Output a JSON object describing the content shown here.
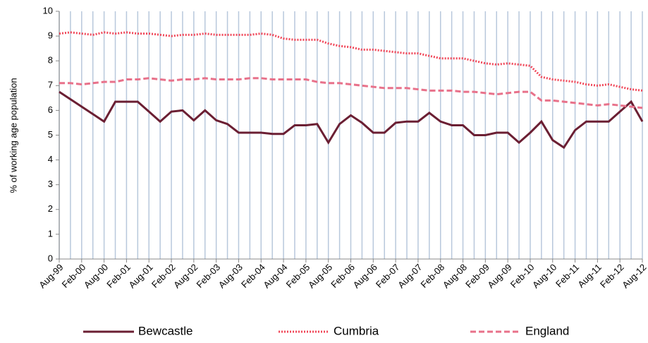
{
  "chart_data": {
    "type": "line",
    "y_label": "% of working age population",
    "categories": [
      "Aug-99",
      null,
      "Feb-00",
      null,
      "Aug-00",
      null,
      "Feb-01",
      null,
      "Aug-01",
      null,
      "Feb-02",
      null,
      "Aug-02",
      null,
      "Feb-03",
      null,
      "Aug-03",
      null,
      "Feb-04",
      null,
      "Aug-04",
      null,
      "Feb-05",
      null,
      "Aug-05",
      null,
      "Feb-06",
      null,
      "Aug-06",
      null,
      "Feb-07",
      null,
      "Aug-07",
      null,
      "Feb-08",
      null,
      "Aug-08",
      null,
      "Feb-09",
      null,
      "Aug-09",
      null,
      "Feb-10",
      null,
      "Aug-10",
      null,
      "Feb-11",
      null,
      "Aug-11",
      null,
      "Feb-12",
      null,
      "Aug-12"
    ],
    "series": [
      {
        "name": "Bewcastle",
        "color": "#6b1f33",
        "dash": "solid",
        "values": [
          6.75,
          6.45,
          6.15,
          5.85,
          5.55,
          6.35,
          6.35,
          6.35,
          5.95,
          5.55,
          5.95,
          6.0,
          5.6,
          6.0,
          5.6,
          5.45,
          5.1,
          5.1,
          5.1,
          5.05,
          5.05,
          5.4,
          5.4,
          5.45,
          4.7,
          5.45,
          5.8,
          5.5,
          5.1,
          5.1,
          5.5,
          5.55,
          5.55,
          5.9,
          5.55,
          5.4,
          5.4,
          5.0,
          5.0,
          5.1,
          5.1,
          4.7,
          5.1,
          5.55,
          4.8,
          4.5,
          5.2,
          5.55,
          5.55,
          5.55,
          5.95,
          6.35,
          5.55
        ]
      },
      {
        "name": "Cumbria",
        "color": "#f0485a",
        "dash": "dotted",
        "values": [
          9.1,
          9.15,
          9.1,
          9.05,
          9.15,
          9.1,
          9.15,
          9.1,
          9.1,
          9.05,
          9.0,
          9.05,
          9.05,
          9.1,
          9.05,
          9.05,
          9.05,
          9.05,
          9.1,
          9.05,
          8.9,
          8.85,
          8.85,
          8.85,
          8.7,
          8.6,
          8.55,
          8.45,
          8.45,
          8.4,
          8.35,
          8.3,
          8.3,
          8.2,
          8.1,
          8.1,
          8.1,
          8.0,
          7.9,
          7.85,
          7.9,
          7.85,
          7.8,
          7.35,
          7.25,
          7.2,
          7.15,
          7.05,
          7.0,
          7.05,
          6.95,
          6.85,
          6.8
        ]
      },
      {
        "name": "England",
        "color": "#e8718a",
        "dash": "dashed",
        "values": [
          7.1,
          7.1,
          7.05,
          7.1,
          7.15,
          7.15,
          7.25,
          7.25,
          7.3,
          7.25,
          7.2,
          7.25,
          7.25,
          7.3,
          7.25,
          7.25,
          7.25,
          7.3,
          7.3,
          7.25,
          7.25,
          7.25,
          7.25,
          7.15,
          7.1,
          7.1,
          7.05,
          7.0,
          6.95,
          6.9,
          6.9,
          6.9,
          6.85,
          6.8,
          6.8,
          6.8,
          6.75,
          6.75,
          6.7,
          6.65,
          6.7,
          6.75,
          6.75,
          6.4,
          6.4,
          6.35,
          6.3,
          6.25,
          6.2,
          6.25,
          6.2,
          6.15,
          6.1
        ]
      }
    ],
    "ylim": [
      0,
      10
    ],
    "yticks": [
      0,
      1,
      2,
      3,
      4,
      5,
      6,
      7,
      8,
      9,
      10
    ],
    "x_grid": true,
    "grid_color": "#b8c8dc",
    "legend": "bottom"
  }
}
